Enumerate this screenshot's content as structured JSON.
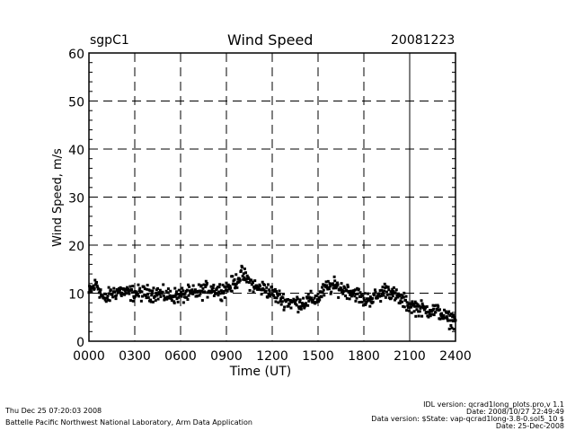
{
  "header": {
    "site": "sgpC1",
    "date": "20081223"
  },
  "footer": {
    "timestamp": "Thu Dec 25 07:20:03 2008",
    "org": "Battelle Pacific Northwest National Laboratory, Arm Data Application",
    "idl_version": "IDL version: qcrad1long_plots.pro,v 1.1",
    "idl_date": "Date: 2008/10/27 22:49:49",
    "data_version": "Data version: $State: vap-qcrad1long-3.8-0.sol5_10 $",
    "data_date": "Date: 25-Dec-2008"
  },
  "chart_data": {
    "type": "scatter",
    "title": "Wind Speed",
    "xlabel": "Time (UT)",
    "ylabel": "Wind Speed, m/s",
    "xlim": [
      0,
      24
    ],
    "ylim": [
      0,
      60
    ],
    "xticks": [
      0,
      3,
      6,
      9,
      12,
      15,
      18,
      21,
      24
    ],
    "xtick_labels": [
      "0000",
      "0300",
      "0600",
      "0900",
      "1200",
      "1500",
      "1800",
      "2100",
      "2400"
    ],
    "yticks": [
      0,
      10,
      20,
      30,
      40,
      50,
      60
    ],
    "ytick_labels": [
      "0",
      "10",
      "20",
      "30",
      "40",
      "50",
      "60"
    ],
    "grid": "dashed",
    "current_time_marker_hour": 21,
    "x_hours_step": 0.5,
    "values": [
      10,
      12,
      8.5,
      10,
      10.5,
      10,
      10,
      10,
      10,
      10,
      9.5,
      9.5,
      9.5,
      9.8,
      10,
      10.5,
      11,
      10.5,
      11,
      12,
      14,
      12.5,
      11,
      11,
      10,
      9,
      8.2,
      8,
      8,
      8.5,
      9,
      11,
      11.5,
      11,
      10.5,
      10,
      8.5,
      9,
      9.5,
      11,
      9.5,
      8.5,
      7.5,
      7,
      6.5,
      6.5,
      6,
      4.5,
      4.5
    ]
  }
}
